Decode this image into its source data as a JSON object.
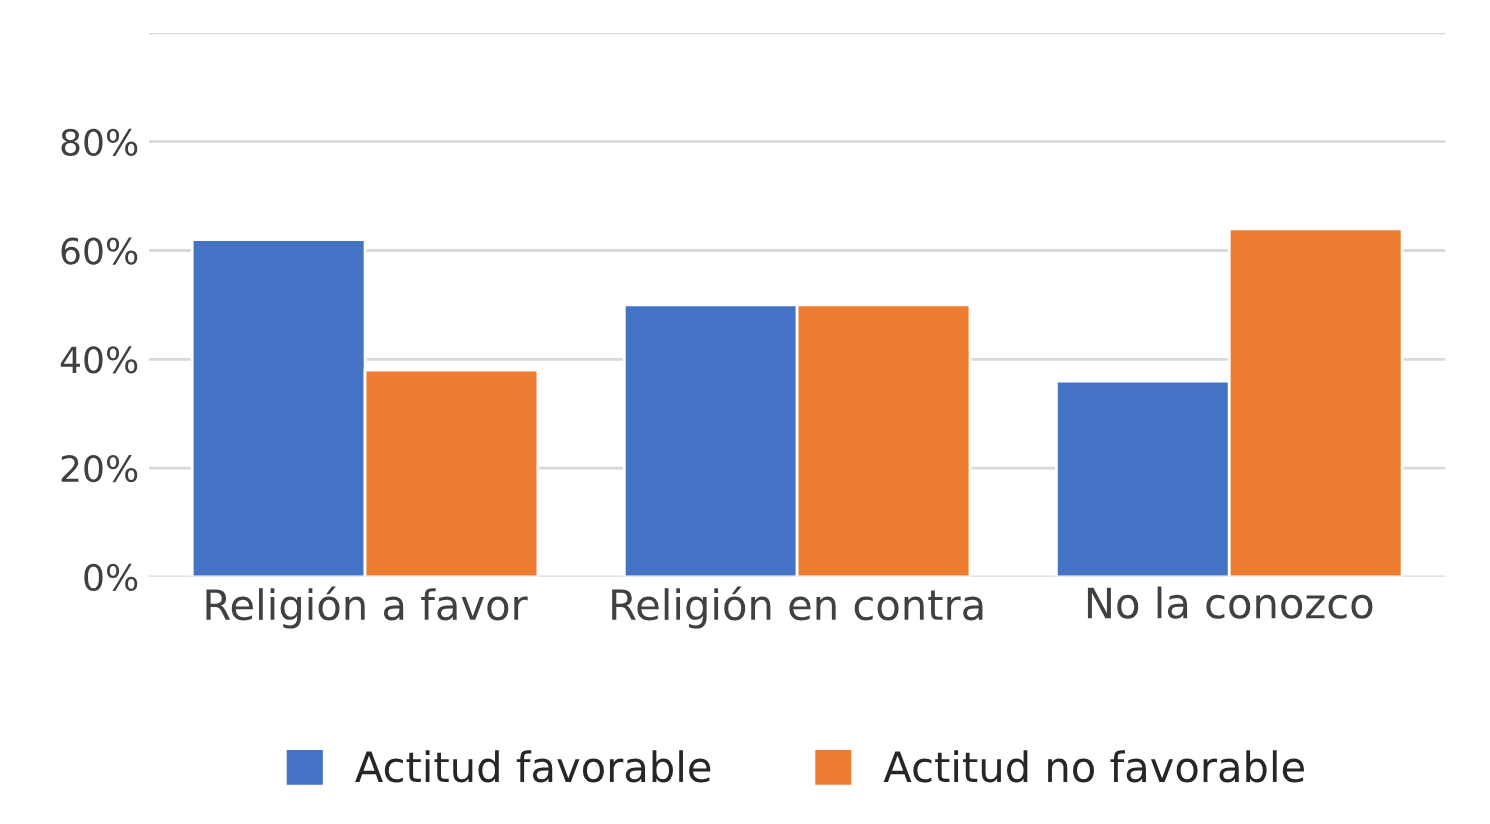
{
  "chart_data": {
    "type": "bar",
    "categories": [
      "Religión a favor",
      "Religión en contra",
      "No la conozco"
    ],
    "series": [
      {
        "name": "Actitud favorable",
        "color": "#4472c4",
        "values": [
          62,
          50,
          36
        ]
      },
      {
        "name": "Actitud no favorable",
        "color": "#ed7d31",
        "values": [
          38,
          50,
          64
        ]
      }
    ],
    "ylim": [
      0,
      100
    ],
    "yticks": [
      {
        "value": 0,
        "label": "0%"
      },
      {
        "value": 20,
        "label": "20%"
      },
      {
        "value": 40,
        "label": "40%"
      },
      {
        "value": 60,
        "label": "60%"
      },
      {
        "value": 80,
        "label": "80%"
      },
      {
        "value": 100,
        "label": null
      }
    ],
    "grid": "y",
    "legend": "bottom"
  }
}
